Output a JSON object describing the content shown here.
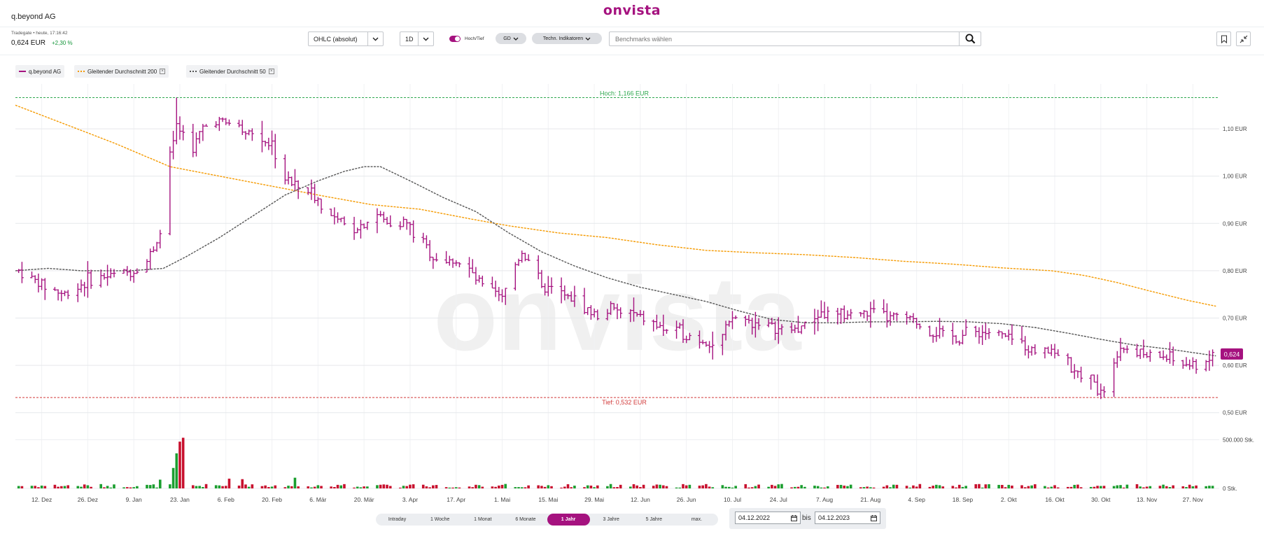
{
  "header": {
    "brand": "onvista",
    "instrument": "q.beyond AG"
  },
  "quote": {
    "meta": "Tradegate • heute, 17:16:42",
    "price": "0,624 EUR",
    "change": "+2,30 %"
  },
  "toolbar": {
    "chart_type": "OHLC (absolut)",
    "interval": "1D",
    "toggle_label": "Hoch/Tief",
    "gd_label": "GD",
    "indicators_label": "Techn. Indikatoren",
    "benchmark_placeholder": "Benchmarks wählen"
  },
  "legend": [
    {
      "label": "q.beyond AG",
      "color": "#a5127f",
      "style": "solid",
      "removable": false
    },
    {
      "label": "Gleitender Durchschnitt 200",
      "color": "#f59a00",
      "style": "dotted",
      "removable": true
    },
    {
      "label": "Gleitender Durchschnitt 50",
      "color": "#555555",
      "style": "dotted",
      "removable": true
    }
  ],
  "ranges": [
    {
      "label": "Intraday",
      "active": false
    },
    {
      "label": "1 Woche",
      "active": false
    },
    {
      "label": "1 Monat",
      "active": false
    },
    {
      "label": "6 Monate",
      "active": false
    },
    {
      "label": "1 Jahr",
      "active": true
    },
    {
      "label": "3 Jahre",
      "active": false
    },
    {
      "label": "5 Jahre",
      "active": false
    },
    {
      "label": "max.",
      "active": false
    }
  ],
  "dates": {
    "from": "04.12.2022",
    "separator": "bis",
    "to": "04.12.2023"
  },
  "chart_data": {
    "type": "ohlc",
    "watermark": "onvista",
    "price_axis": {
      "ticks": [
        0.5,
        0.6,
        0.7,
        0.8,
        0.9,
        1.0,
        1.1
      ],
      "tick_labels": [
        "0,50 EUR",
        "0,60 EUR",
        "0,70 EUR",
        "0,80 EUR",
        "0,90 EUR",
        "1,00 EUR",
        "1,10 EUR"
      ],
      "range": [
        0.47,
        1.18
      ]
    },
    "volume_axis": {
      "ticks": [
        0,
        500000
      ],
      "tick_labels": [
        "0 Stk.",
        "500.000 Stk."
      ],
      "range": [
        0,
        560000
      ]
    },
    "x_labels": [
      "12. Dez",
      "26. Dez",
      "9. Jan",
      "23. Jan",
      "6. Feb",
      "20. Feb",
      "6. Mär",
      "20. Mär",
      "3. Apr",
      "17. Apr",
      "1. Mai",
      "15. Mai",
      "29. Mai",
      "12. Jun",
      "26. Jun",
      "10. Jul",
      "24. Jul",
      "7. Aug",
      "21. Aug",
      "4. Sep",
      "18. Sep",
      "2. Okt",
      "16. Okt",
      "30. Okt",
      "13. Nov",
      "27. Nov"
    ],
    "x_label_days": [
      8,
      22,
      36,
      50,
      64,
      78,
      92,
      106,
      120,
      134,
      148,
      162,
      176,
      190,
      204,
      218,
      232,
      246,
      260,
      274,
      288,
      302,
      316,
      330,
      344,
      358
    ],
    "x_range_days": [
      0,
      366
    ],
    "high_line": {
      "value": 1.166,
      "label": "Hoch: 1,166 EUR"
    },
    "low_line": {
      "value": 0.532,
      "label": "Tief: 0,532 EUR"
    },
    "last_price": {
      "value": 0.624,
      "label": "0,624"
    },
    "price_anchors": [
      [
        1,
        0.8
      ],
      [
        8,
        0.77
      ],
      [
        15,
        0.75
      ],
      [
        22,
        0.78
      ],
      [
        29,
        0.79
      ],
      [
        36,
        0.8
      ],
      [
        40,
        0.82
      ],
      [
        44,
        0.88
      ],
      [
        46,
        0.9
      ],
      [
        47,
        1.05
      ],
      [
        49,
        1.1
      ],
      [
        51,
        1.08
      ],
      [
        54,
        1.06
      ],
      [
        57,
        1.1
      ],
      [
        61,
        1.12
      ],
      [
        64,
        1.11
      ],
      [
        67,
        1.12
      ],
      [
        70,
        1.1
      ],
      [
        74,
        1.08
      ],
      [
        78,
        1.07
      ],
      [
        81,
        1.0
      ],
      [
        85,
        0.98
      ],
      [
        89,
        0.97
      ],
      [
        92,
        0.95
      ],
      [
        95,
        0.92
      ],
      [
        99,
        0.9
      ],
      [
        103,
        0.89
      ],
      [
        106,
        0.9
      ],
      [
        110,
        0.92
      ],
      [
        113,
        0.9
      ],
      [
        116,
        0.91
      ],
      [
        119,
        0.9
      ],
      [
        122,
        0.87
      ],
      [
        125,
        0.85
      ],
      [
        127,
        0.83
      ],
      [
        131,
        0.82
      ],
      [
        134,
        0.82
      ],
      [
        138,
        0.8
      ],
      [
        141,
        0.77
      ],
      [
        144,
        0.76
      ],
      [
        148,
        0.74
      ],
      [
        151,
        0.8
      ],
      [
        154,
        0.84
      ],
      [
        157,
        0.82
      ],
      [
        160,
        0.76
      ],
      [
        163,
        0.76
      ],
      [
        166,
        0.75
      ],
      [
        169,
        0.74
      ],
      [
        172,
        0.73
      ],
      [
        175,
        0.71
      ],
      [
        178,
        0.7
      ],
      [
        181,
        0.72
      ],
      [
        184,
        0.71
      ],
      [
        187,
        0.71
      ],
      [
        190,
        0.7
      ],
      [
        193,
        0.69
      ],
      [
        196,
        0.68
      ],
      [
        200,
        0.67
      ],
      [
        203,
        0.67
      ],
      [
        206,
        0.66
      ],
      [
        210,
        0.65
      ],
      [
        213,
        0.64
      ],
      [
        215,
        0.66
      ],
      [
        218,
        0.7
      ],
      [
        221,
        0.7
      ],
      [
        224,
        0.69
      ],
      [
        227,
        0.69
      ],
      [
        230,
        0.68
      ],
      [
        234,
        0.67
      ],
      [
        238,
        0.68
      ],
      [
        241,
        0.69
      ],
      [
        244,
        0.71
      ],
      [
        247,
        0.71
      ],
      [
        250,
        0.7
      ],
      [
        254,
        0.71
      ],
      [
        258,
        0.71
      ],
      [
        261,
        0.71
      ],
      [
        264,
        0.7
      ],
      [
        268,
        0.7
      ],
      [
        271,
        0.7
      ],
      [
        274,
        0.69
      ],
      [
        277,
        0.67
      ],
      [
        280,
        0.67
      ],
      [
        284,
        0.66
      ],
      [
        287,
        0.66
      ],
      [
        290,
        0.67
      ],
      [
        294,
        0.67
      ],
      [
        298,
        0.67
      ],
      [
        301,
        0.66
      ],
      [
        304,
        0.65
      ],
      [
        307,
        0.64
      ],
      [
        310,
        0.63
      ],
      [
        313,
        0.64
      ],
      [
        316,
        0.63
      ],
      [
        319,
        0.61
      ],
      [
        322,
        0.58
      ],
      [
        325,
        0.58
      ],
      [
        328,
        0.56
      ],
      [
        331,
        0.55
      ],
      [
        333,
        0.6
      ],
      [
        336,
        0.64
      ],
      [
        340,
        0.63
      ],
      [
        344,
        0.62
      ],
      [
        348,
        0.62
      ],
      [
        352,
        0.61
      ],
      [
        356,
        0.6
      ],
      [
        359,
        0.6
      ],
      [
        362,
        0.61
      ],
      [
        364,
        0.62
      ]
    ],
    "gd200_anchors": [
      [
        0,
        1.15
      ],
      [
        15,
        1.11
      ],
      [
        30,
        1.07
      ],
      [
        47,
        1.02
      ],
      [
        62,
        1.0
      ],
      [
        77,
        0.98
      ],
      [
        92,
        0.96
      ],
      [
        108,
        0.94
      ],
      [
        123,
        0.93
      ],
      [
        138,
        0.91
      ],
      [
        150,
        0.895
      ],
      [
        165,
        0.88
      ],
      [
        180,
        0.87
      ],
      [
        195,
        0.855
      ],
      [
        210,
        0.843
      ],
      [
        225,
        0.838
      ],
      [
        240,
        0.834
      ],
      [
        255,
        0.828
      ],
      [
        270,
        0.82
      ],
      [
        285,
        0.814
      ],
      [
        300,
        0.806
      ],
      [
        315,
        0.8
      ],
      [
        325,
        0.79
      ],
      [
        335,
        0.775
      ],
      [
        345,
        0.757
      ],
      [
        356,
        0.738
      ],
      [
        365,
        0.725
      ]
    ],
    "gd50_anchors": [
      [
        0,
        0.8
      ],
      [
        10,
        0.805
      ],
      [
        20,
        0.8
      ],
      [
        35,
        0.8
      ],
      [
        45,
        0.805
      ],
      [
        52,
        0.83
      ],
      [
        62,
        0.87
      ],
      [
        72,
        0.915
      ],
      [
        82,
        0.96
      ],
      [
        92,
        0.99
      ],
      [
        100,
        1.01
      ],
      [
        106,
        1.02
      ],
      [
        111,
        1.02
      ],
      [
        120,
        0.99
      ],
      [
        130,
        0.955
      ],
      [
        140,
        0.925
      ],
      [
        150,
        0.88
      ],
      [
        160,
        0.84
      ],
      [
        170,
        0.81
      ],
      [
        180,
        0.785
      ],
      [
        190,
        0.765
      ],
      [
        200,
        0.75
      ],
      [
        210,
        0.735
      ],
      [
        220,
        0.715
      ],
      [
        230,
        0.697
      ],
      [
        240,
        0.69
      ],
      [
        250,
        0.69
      ],
      [
        260,
        0.692
      ],
      [
        270,
        0.692
      ],
      [
        280,
        0.693
      ],
      [
        290,
        0.692
      ],
      [
        300,
        0.688
      ],
      [
        310,
        0.68
      ],
      [
        320,
        0.668
      ],
      [
        330,
        0.655
      ],
      [
        340,
        0.643
      ],
      [
        350,
        0.635
      ],
      [
        360,
        0.625
      ],
      [
        365,
        0.62
      ]
    ],
    "volume_spikes": [
      [
        48,
        210000
      ],
      [
        49,
        360000
      ],
      [
        50,
        480000
      ],
      [
        51,
        520000
      ],
      [
        52,
        260000
      ],
      [
        53,
        120000
      ],
      [
        44,
        90000
      ],
      [
        45,
        70000
      ],
      [
        85,
        110000
      ],
      [
        102,
        90000
      ],
      [
        171,
        85000
      ],
      [
        65,
        100000
      ],
      [
        69,
        95000
      ]
    ]
  }
}
